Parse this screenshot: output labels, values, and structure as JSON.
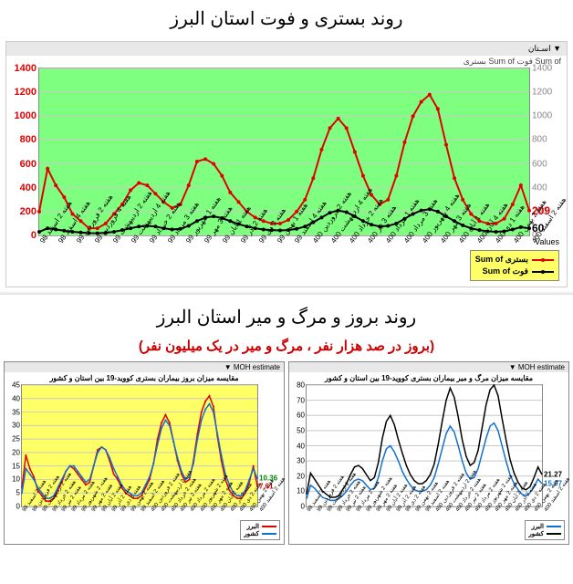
{
  "title1": "روند بستری و فوت استان البرز",
  "title2": "روند بروز و مرگ و میر استان البرز",
  "subtitle2": "(بروز در صد هزار نفر ، مرگ و میر در یک میلیون نفر)",
  "chart1": {
    "type": "line",
    "header": "▼ اسـتان",
    "subheader": "Sum of فوت   Sum of بستری",
    "values_caption": "Values",
    "background_color": "#7fff7f",
    "grid_color": "#c8c8c8",
    "ylim": [
      0,
      1400
    ],
    "ytick_step": 200,
    "xlim": [
      0,
      55
    ],
    "y_label_color": "#d00000",
    "series": {
      "hosp": {
        "label": "بستری Sum of",
        "color": "#e00000",
        "marker": "circle",
        "marker_size": 4,
        "line_width": 2,
        "values": [
          200,
          560,
          420,
          320,
          180,
          120,
          60,
          60,
          100,
          180,
          260,
          380,
          440,
          420,
          350,
          280,
          230,
          260,
          420,
          620,
          640,
          600,
          500,
          360,
          280,
          200,
          150,
          120,
          100,
          100,
          130,
          200,
          300,
          480,
          720,
          900,
          980,
          900,
          700,
          500,
          340,
          260,
          300,
          500,
          780,
          1000,
          1120,
          1180,
          1060,
          760,
          480,
          300,
          180,
          120,
          100,
          100,
          140,
          260,
          420,
          209
        ],
        "end_value": 209,
        "end_color": "#e00000"
      },
      "death": {
        "label": "فوت Sum of",
        "color": "#000000",
        "marker": "circle",
        "marker_size": 4,
        "line_width": 2,
        "values": [
          30,
          60,
          50,
          40,
          30,
          25,
          20,
          18,
          22,
          30,
          45,
          60,
          75,
          80,
          75,
          60,
          50,
          55,
          80,
          120,
          150,
          160,
          145,
          120,
          95,
          75,
          60,
          50,
          45,
          42,
          45,
          55,
          75,
          110,
          150,
          190,
          210,
          195,
          160,
          120,
          90,
          75,
          80,
          100,
          140,
          180,
          210,
          220,
          200,
          160,
          120,
          85,
          60,
          45,
          35,
          30,
          35,
          50,
          70,
          60
        ],
        "end_value": 60,
        "end_color": "#000000"
      }
    },
    "xlabels_sample": [
      "هفته 2 اسفند 98",
      "هفته 4 اسفند 98",
      "هفته 2 فروردین 99",
      "هفته 4 فروردین 99",
      "هفته 2 اردیبهشت 99",
      "هفته 4 اردیبهشت 99",
      "هفته 2 خرداد 99",
      "هفته 3 مرداد 99",
      "هفته 1 شهریور 99",
      "هفته 3 مهر 99",
      "هفته 1 آبان 99",
      "هفته 2 آذر 99",
      "هفته 3 دی 99",
      "هفته 1 بهمن 99",
      "هفته 4 اسفند 99",
      "هفته 2 فروردین 400",
      "هفته 4 اردیبهشت 400",
      "هفته 2 خرداد 400",
      "هفته 3 تیر 400",
      "هفته 1 مرداد 400",
      "هفته 3 مرداد 400",
      "هفته 4 شهریور 400",
      "هفته 3 مهر 400",
      "هفته 1 آبان 400",
      "هفته 4 آبان 400",
      "هفته 1 دی 400",
      "هفته 2 بهمن 400",
      "هفته 2 اسفند 400"
    ]
  },
  "chart2_left": {
    "type": "line",
    "header": "MOH estimate ▼",
    "title": "مقایسه میزان بروز بیماران بستری کووید-19 بین استان و کشور",
    "background_color": "#ffff66",
    "ylim": [
      0,
      45
    ],
    "ytick_step": 5,
    "xlim": [
      0,
      59
    ],
    "series": {
      "province": {
        "label": "البرز",
        "color": "#e00000",
        "line_width": 1.5,
        "marker": "dot",
        "values": [
          7,
          19,
          14,
          11,
          6,
          4,
          2,
          2,
          3,
          6,
          9,
          13,
          15,
          14,
          12,
          10,
          8,
          9,
          15,
          21,
          22,
          21,
          17,
          12,
          10,
          7,
          5,
          4,
          3,
          3,
          4,
          7,
          10,
          16,
          25,
          31,
          34,
          31,
          24,
          17,
          12,
          9,
          10,
          17,
          27,
          35,
          39,
          41,
          37,
          26,
          17,
          10,
          6,
          4,
          3,
          3,
          5,
          9,
          15,
          7.6
        ],
        "end_value": 7.61,
        "end_color": "#e00000"
      },
      "country": {
        "label": "کشور",
        "color": "#1070d0",
        "line_width": 1.5,
        "marker": "dot",
        "values": [
          5,
          14,
          12,
          10,
          7,
          5,
          3,
          3,
          4,
          7,
          10,
          13,
          15,
          15,
          13,
          11,
          9,
          10,
          15,
          20,
          22,
          21,
          18,
          14,
          11,
          8,
          6,
          5,
          4,
          4,
          5,
          8,
          11,
          16,
          23,
          29,
          32,
          30,
          24,
          18,
          13,
          10,
          11,
          16,
          25,
          32,
          36,
          38,
          35,
          27,
          19,
          12,
          8,
          5,
          4,
          4,
          6,
          10,
          14,
          10.4
        ],
        "end_value": 10.36,
        "end_color": "#008800"
      }
    }
  },
  "chart2_right": {
    "type": "line",
    "header": "MOH estimate ▼",
    "title": "مقایسه میزان مرگ و میر بیماران بستری کووید-19 بین استان و کشور",
    "background_color": "#ffffff",
    "ylim": [
      0,
      80
    ],
    "ytick_step": 10,
    "xlim": [
      0,
      59
    ],
    "series": {
      "province": {
        "label": "البرز",
        "color": "#1070d0",
        "line_width": 1.5,
        "values": [
          5,
          14,
          12,
          9,
          6,
          5,
          4,
          4,
          5,
          7,
          10,
          14,
          17,
          18,
          17,
          14,
          11,
          12,
          19,
          30,
          38,
          40,
          36,
          30,
          23,
          18,
          14,
          11,
          10,
          10,
          11,
          14,
          19,
          28,
          38,
          48,
          53,
          49,
          40,
          30,
          22,
          18,
          19,
          25,
          35,
          45,
          53,
          55,
          50,
          40,
          30,
          21,
          15,
          11,
          8,
          7,
          9,
          13,
          18,
          15
        ],
        "end_value": 15.07,
        "end_color": "#1070d0"
      },
      "country": {
        "label": "کشور",
        "color": "#000000",
        "line_width": 1.5,
        "values": [
          8,
          22,
          18,
          14,
          10,
          8,
          6,
          6,
          7,
          11,
          15,
          21,
          26,
          27,
          25,
          21,
          17,
          19,
          29,
          45,
          56,
          60,
          54,
          44,
          35,
          27,
          21,
          17,
          15,
          15,
          17,
          21,
          28,
          41,
          56,
          70,
          78,
          72,
          59,
          44,
          33,
          27,
          29,
          37,
          52,
          67,
          77,
          80,
          73,
          58,
          44,
          31,
          22,
          16,
          12,
          11,
          13,
          19,
          26,
          21
        ],
        "end_value": 21.27,
        "end_color": "#000000"
      }
    }
  },
  "mini_xlabels_sample": [
    "هفته 2 اسفند 98",
    "هفته 2 فروردین 99",
    "هفته 2 اردیبهشت 99",
    "هفته 2 خرداد 99",
    "هفته 2 تیر 99",
    "هفته 2 مرداد 99",
    "هفته 2 شهریور 99",
    "هفته 2 مهر 99",
    "هفته 2 آبان 99",
    "هفته 2 آذر 99",
    "هفته 2 دی 99",
    "هفته 2 بهمن 99",
    "هفته 2 اسفند 99",
    "هفته 2 فروردین 400",
    "هفته 2 اردیبهشت 400",
    "هفته 2 خرداد 400",
    "هفته 2 تیر 400",
    "هفته 2 مرداد 400",
    "هفته 2 شهریور 400",
    "هفته 2 مهر 400",
    "هفته 2 آبان 400",
    "هفته 2 آذر 400",
    "هفته 2 دی 400",
    "هفته 2 بهمن 400",
    "هفته 2 اسفند 400"
  ]
}
